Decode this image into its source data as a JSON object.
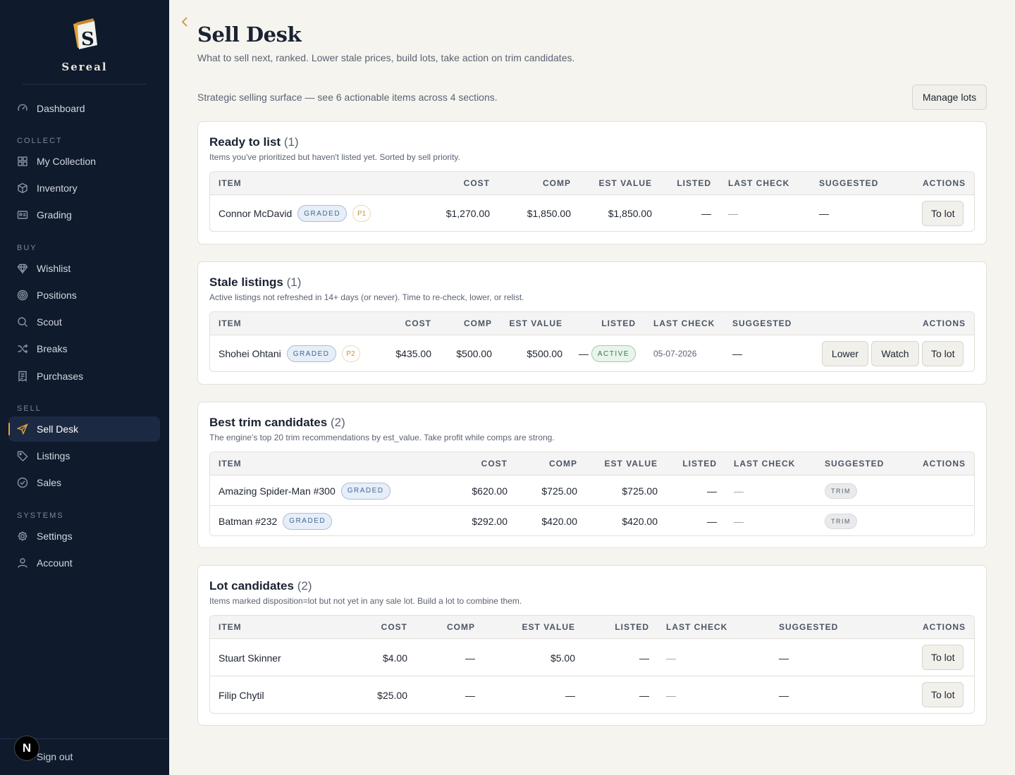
{
  "brand": {
    "name": "Sereal",
    "logo_letter": "S"
  },
  "nav": {
    "top": [
      {
        "label": "Dashboard",
        "icon": "dashboard-icon"
      }
    ],
    "sections": [
      {
        "title": "COLLECT",
        "items": [
          {
            "label": "My Collection",
            "icon": "grid-icon"
          },
          {
            "label": "Inventory",
            "icon": "box-icon"
          },
          {
            "label": "Grading",
            "icon": "id-card-icon"
          }
        ]
      },
      {
        "title": "BUY",
        "items": [
          {
            "label": "Wishlist",
            "icon": "diamond-icon"
          },
          {
            "label": "Positions",
            "icon": "target-icon"
          },
          {
            "label": "Scout",
            "icon": "search-icon"
          },
          {
            "label": "Breaks",
            "icon": "shuffle-icon"
          },
          {
            "label": "Purchases",
            "icon": "receipt-icon"
          }
        ]
      },
      {
        "title": "SELL",
        "items": [
          {
            "label": "Sell Desk",
            "icon": "send-icon",
            "active": true
          },
          {
            "label": "Listings",
            "icon": "tag-icon"
          },
          {
            "label": "Sales",
            "icon": "check-circle-icon"
          }
        ]
      },
      {
        "title": "SYSTEMS",
        "items": [
          {
            "label": "Settings",
            "icon": "gear-icon"
          },
          {
            "label": "Account",
            "icon": "user-icon"
          }
        ]
      }
    ],
    "signout": "Sign out",
    "dev_badge": "N"
  },
  "header": {
    "title": "Sell Desk",
    "subtitle": "What to sell next, ranked. Lower stale prices, build lots, take action on trim candidates.",
    "strategic": "Strategic selling surface — see 6 actionable items across 4 sections.",
    "manage_lots": "Manage lots"
  },
  "columns": [
    "ITEM",
    "COST",
    "COMP",
    "EST VALUE",
    "LISTED",
    "LAST CHECK",
    "SUGGESTED",
    "ACTIONS"
  ],
  "sections": {
    "ready": {
      "title": "Ready to list",
      "count": "(1)",
      "desc": "Items you've prioritized but haven't listed yet. Sorted by sell priority.",
      "rows": [
        {
          "item": "Connor McDavid",
          "badge": "GRADED",
          "priority": "P1",
          "cost": "$1,270.00",
          "comp": "$1,850.00",
          "est": "$1,850.00",
          "listed": "—",
          "last_check": "—",
          "suggested": "—",
          "actions": [
            "To lot"
          ]
        }
      ]
    },
    "stale": {
      "title": "Stale listings",
      "count": "(1)",
      "desc": "Active listings not refreshed in 14+ days (or never). Time to re-check, lower, or relist.",
      "rows": [
        {
          "item": "Shohei Ohtani",
          "badge": "GRADED",
          "priority": "P2",
          "cost": "$435.00",
          "comp": "$500.00",
          "est": "$500.00",
          "listed": "—",
          "status": "ACTIVE",
          "last_check": "05-07-2026",
          "suggested": "—",
          "actions": [
            "Lower",
            "Watch",
            "To lot"
          ]
        }
      ]
    },
    "trim": {
      "title": "Best trim candidates",
      "count": "(2)",
      "desc": "The engine's top 20 trim recommendations by est_value. Take profit while comps are strong.",
      "rows": [
        {
          "item": "Amazing Spider-Man #300",
          "badge": "GRADED",
          "cost": "$620.00",
          "comp": "$725.00",
          "est": "$725.00",
          "listed": "—",
          "last_check": "—",
          "suggested": "TRIM"
        },
        {
          "item": "Batman #232",
          "badge": "GRADED",
          "cost": "$292.00",
          "comp": "$420.00",
          "est": "$420.00",
          "listed": "—",
          "last_check": "—",
          "suggested": "TRIM"
        }
      ]
    },
    "lot": {
      "title": "Lot candidates",
      "count": "(2)",
      "desc": "Items marked disposition=lot but not yet in any sale lot. Build a lot to combine them.",
      "rows": [
        {
          "item": "Stuart Skinner",
          "cost": "$4.00",
          "comp": "—",
          "est": "$5.00",
          "listed": "—",
          "last_check": "—",
          "suggested": "—",
          "actions": [
            "To lot"
          ]
        },
        {
          "item": "Filip Chytil",
          "cost": "$25.00",
          "comp": "—",
          "est": "—",
          "listed": "—",
          "last_check": "—",
          "suggested": "—",
          "actions": [
            "To lot"
          ]
        }
      ]
    }
  }
}
